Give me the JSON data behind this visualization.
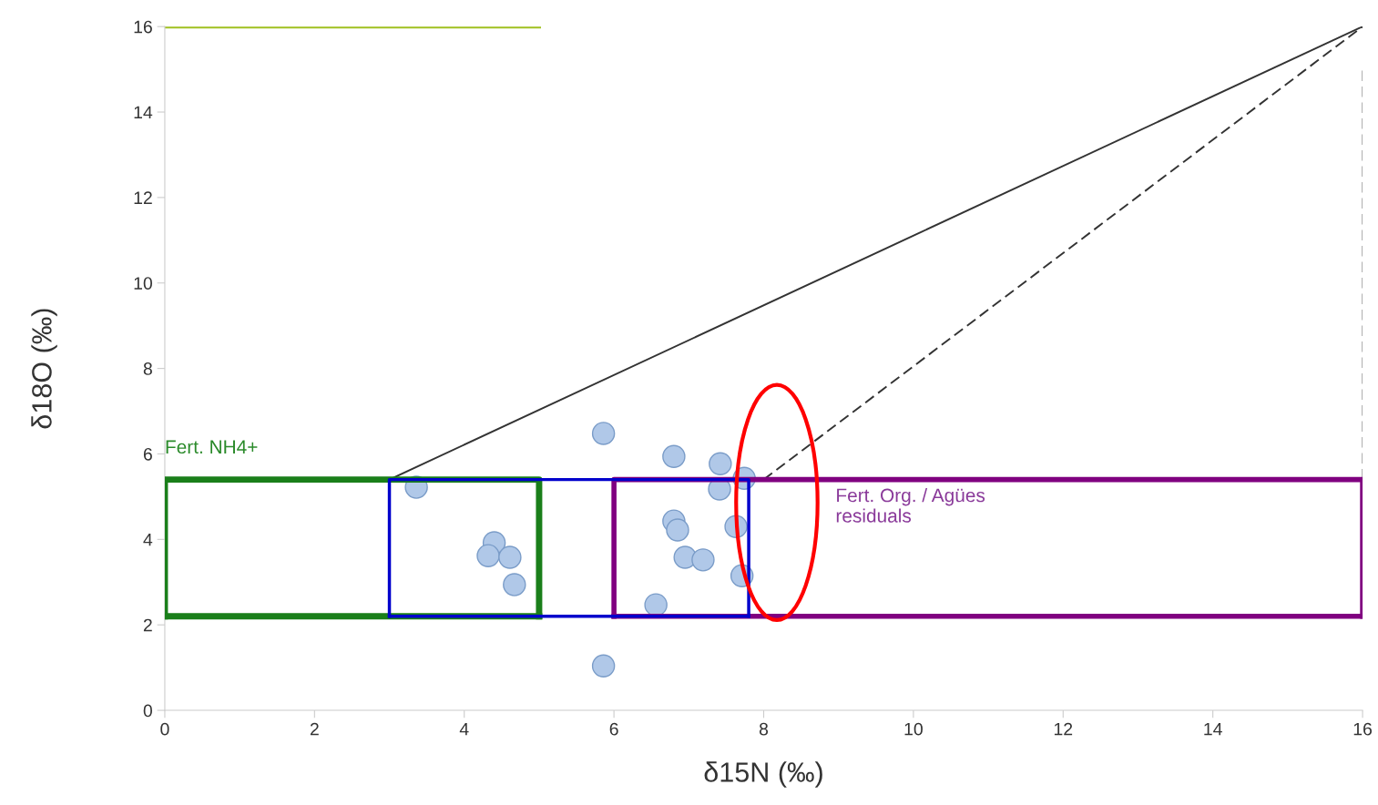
{
  "chart_data": {
    "type": "scatter",
    "xlabel": "δ15N (‰)",
    "ylabel": "δ18O (‰)",
    "xlim": [
      0,
      16
    ],
    "ylim": [
      0,
      16
    ],
    "xticks": [
      0,
      2,
      4,
      6,
      8,
      10,
      12,
      14,
      16
    ],
    "yticks": [
      0,
      2,
      4,
      6,
      8,
      10,
      12,
      14,
      16
    ],
    "grid": false,
    "series": [
      {
        "type": "line",
        "color": "#1a7f1a",
        "line_style": "solid",
        "marker": "none",
        "x": [
          0,
          0,
          5,
          5
        ],
        "values": [
          2.2,
          5.4,
          5.4,
          2.2
        ]
      },
      {
        "type": "line",
        "color": "#1a7f1a",
        "line_style": "solid",
        "marker": "none",
        "x": [
          0,
          5
        ],
        "values": [
          2.2,
          2.2
        ]
      },
      {
        "type": "line",
        "color": "#800080",
        "line_style": "solid",
        "marker": "none",
        "x": [
          6,
          6,
          16,
          16
        ],
        "values": [
          2.2,
          5.4,
          5.4,
          2.2
        ]
      },
      {
        "type": "line",
        "color": "#800080",
        "line_style": "solid",
        "marker": "none",
        "x": [
          6,
          16
        ],
        "values": [
          2.2,
          2.2
        ]
      },
      {
        "type": "line",
        "color": "#0000cc",
        "line_style": "solid",
        "marker": "none",
        "x": [
          3,
          3,
          7.8,
          7.8
        ],
        "values": [
          2.2,
          5.4,
          5.4,
          2.2
        ]
      },
      {
        "type": "line",
        "color": "#0000cc",
        "line_style": "solid",
        "marker": "none",
        "x": [
          3,
          7.8
        ],
        "values": [
          2.2,
          2.2
        ]
      },
      {
        "type": "line",
        "color": "#333333",
        "line_style": "solid",
        "marker": "none",
        "x": [
          3,
          16
        ],
        "values": [
          5.4,
          16
        ]
      },
      {
        "type": "line",
        "color": "#333333",
        "line_style": "dashed",
        "marker": "none",
        "x": [
          8,
          16
        ],
        "values": [
          5.4,
          16
        ]
      },
      {
        "type": "line",
        "color": "#aaaaaa",
        "line_style": "dashed",
        "marker": "none",
        "x": [
          16,
          16
        ],
        "values": [
          5.4,
          15
        ]
      },
      {
        "type": "line",
        "color": "#a0c020",
        "line_style": "solid",
        "marker": "none",
        "x": [
          0,
          5
        ],
        "values": [
          16,
          16
        ]
      },
      {
        "color": "#b0c8e8",
        "marker": "circle",
        "x": [
          3.36,
          5.86,
          6.8,
          7.42,
          7.41,
          7.74,
          4.4,
          4.32,
          4.61,
          4.67,
          6.8,
          6.85,
          7.63,
          6.95,
          7.19,
          7.71,
          6.56,
          5.86
        ],
        "values": [
          5.22,
          6.48,
          5.94,
          5.77,
          5.18,
          5.43,
          3.92,
          3.62,
          3.58,
          2.94,
          4.43,
          4.22,
          4.3,
          3.58,
          3.52,
          3.15,
          2.47,
          1.04
        ]
      }
    ],
    "annotations": [
      "Fert. NH4+",
      "Fert. Org. / Agües\nresiduals"
    ]
  }
}
